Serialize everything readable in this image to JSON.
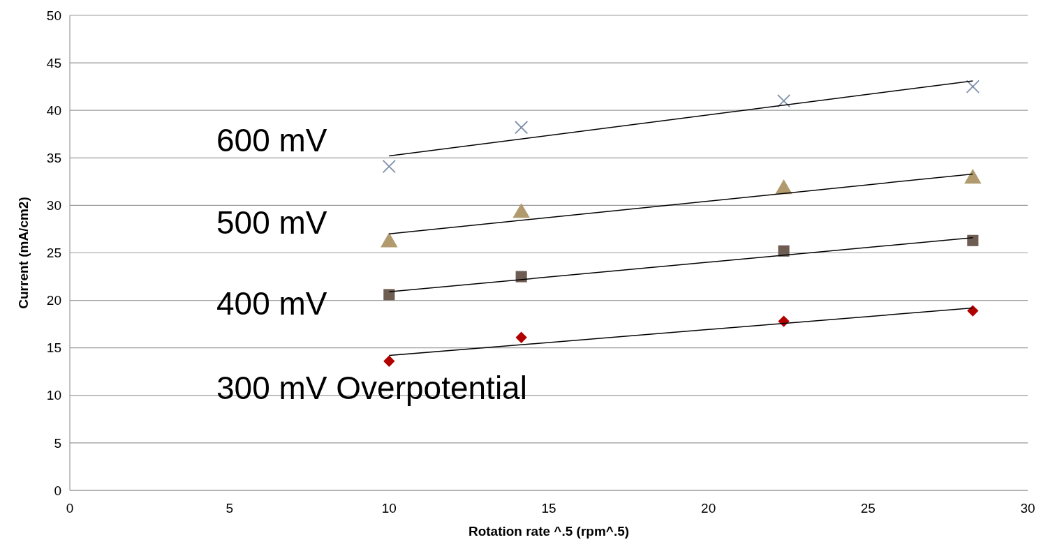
{
  "chart_data": {
    "type": "scatter",
    "xlabel": "Rotation rate ^.5 (rpm^.5)",
    "ylabel": "Current (mA/cm2)",
    "xlim": [
      0,
      30
    ],
    "xticks": [
      0,
      5,
      10,
      15,
      20,
      25,
      30
    ],
    "ylim": [
      0,
      50
    ],
    "yticks": [
      0,
      5,
      10,
      15,
      20,
      25,
      30,
      35,
      40,
      45,
      50
    ],
    "grid": "y",
    "series": [
      {
        "color": "#7f8fa9",
        "marker": "cross",
        "x": [
          10,
          14.14,
          22.36,
          28.28
        ],
        "values": [
          34.1,
          38.2,
          41.0,
          42.5
        ]
      },
      {
        "color": "#b09a6e",
        "marker": "triangle",
        "x": [
          10,
          14.14,
          22.36,
          28.28
        ],
        "values": [
          26.1,
          29.2,
          31.7,
          32.8
        ]
      },
      {
        "color": "#6e5d52",
        "marker": "square",
        "x": [
          10,
          14.14,
          22.36,
          28.28
        ],
        "values": [
          20.6,
          22.5,
          25.2,
          26.3
        ]
      },
      {
        "color": "#b00000",
        "marker": "diamond",
        "x": [
          10,
          14.14,
          22.36,
          28.28
        ],
        "values": [
          13.6,
          16.1,
          17.8,
          18.9
        ]
      },
      {
        "type": "line",
        "color": "#000000",
        "marker": "none",
        "x": [
          10,
          28.28
        ],
        "values": [
          35.2,
          43.1
        ]
      },
      {
        "type": "line",
        "color": "#000000",
        "marker": "none",
        "x": [
          10,
          28.28
        ],
        "values": [
          27.0,
          33.3
        ]
      },
      {
        "type": "line",
        "color": "#000000",
        "marker": "none",
        "x": [
          10,
          28.28
        ],
        "values": [
          20.9,
          26.6
        ]
      },
      {
        "type": "line",
        "color": "#000000",
        "marker": "none",
        "x": [
          10,
          28.28
        ],
        "values": [
          14.2,
          19.2
        ]
      }
    ],
    "annotations": [
      "600 mV",
      "500 mV",
      "400 mV",
      "300 mV Overpotential"
    ]
  }
}
